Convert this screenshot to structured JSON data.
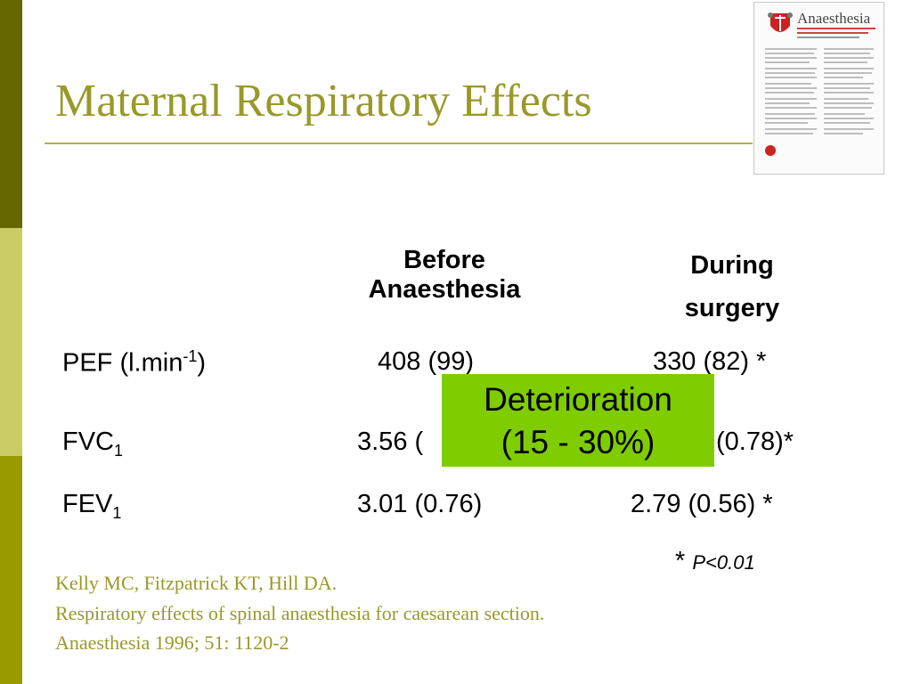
{
  "slide": {
    "title": "Maternal Respiratory Effects"
  },
  "thumbnail": {
    "journal_name": "Anaesthesia"
  },
  "table": {
    "headers": {
      "before_line1": "Before",
      "before_line2": "Anaesthesia",
      "during_line1": "During",
      "during_line2": "surgery"
    },
    "rows": [
      {
        "label": "PEF (l.min",
        "sup": "-1",
        "label_end": ")",
        "before": "408 (99)",
        "during": "330 (82) *"
      },
      {
        "label": "FVC",
        "sub": "1",
        "before": "3.56 (",
        "during": "(0.78)*"
      },
      {
        "label": "FEV",
        "sub": "1",
        "before": "3.01 (0.76)",
        "during": "2.79 (0.56) *"
      }
    ]
  },
  "callout": {
    "line1": "Deterioration",
    "line2": "(15 - 30%)"
  },
  "significance": {
    "star": "* ",
    "text": "P<0.01"
  },
  "reference": {
    "line1": "Kelly MC, Fitzpatrick KT, Hill DA.",
    "line2": "Respiratory effects of spinal anaesthesia for caesarean section.",
    "line3": "Anaesthesia 1996; 51: 1120-2"
  },
  "colors": {
    "sidebar_dark": "#666600",
    "sidebar_light": "#cccc66",
    "sidebar_mid": "#999900",
    "title": "#99992a",
    "callout_bg": "#7fcc00"
  }
}
